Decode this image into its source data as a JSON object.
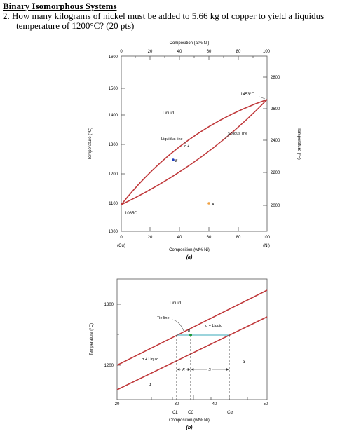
{
  "header": {
    "section_title": "Binary Isomorphous Systems",
    "question_line1": "2.  How many kilograms of nickel must be added to 5.66 kg of copper to yield a liquidus",
    "question_line2": "temperature of 1200°C? (20 pts)"
  },
  "diagram_a": {
    "top_axis_title": "Composition (at% Ni)",
    "top_ticks": [
      "0",
      "20",
      "40",
      "60",
      "80",
      "100"
    ],
    "left_axis_title": "Temperature (°C)",
    "left_ticks": [
      "1600",
      "1500",
      "1400",
      "1300",
      "1200",
      "1100",
      "1000"
    ],
    "right_axis_title": "Temperature (°F)",
    "right_ticks": [
      "2800",
      "2600",
      "2400",
      "2200",
      "2000"
    ],
    "bottom_ticks": [
      "0",
      "20",
      "40",
      "60",
      "80",
      "100"
    ],
    "bottom_end_left": "(Cu)",
    "bottom_end_right": "(Ni)",
    "bottom_axis_title": "Composition (wt% Ni)",
    "panel_label": "(a)",
    "labels": {
      "liquid": "Liquid",
      "melting_ni": "1453°C",
      "liquidus_line": "Liquidus line",
      "solidus_line": "Solidus line",
      "two_phase": "α + L",
      "point_b": "B",
      "point_a": "A",
      "melting_cu": "1085C"
    },
    "colors": {
      "curve": "#c0393b",
      "point_b": "#1f3fbf",
      "point_a": "#f0a040"
    }
  },
  "diagram_b": {
    "left_axis_title": "Temperature (°C)",
    "left_ticks": [
      "1300",
      "1200"
    ],
    "bottom_ticks": [
      "20",
      "30",
      "40",
      "50"
    ],
    "bottom_axis_title": "Composition (wt% Ni)",
    "panel_label": "(b)",
    "labels": {
      "liquid": "Liquid",
      "tie_line": "Tie line",
      "alpha_liquid_right": "α + Liquid",
      "alpha_liquid_left": "α + Liquid",
      "point_b": "B",
      "alpha_right": "α",
      "alpha_left": "α",
      "r": "R",
      "s": "S",
      "cl": "CL",
      "c0": "C0",
      "calpha": "Cα"
    },
    "colors": {
      "curve": "#c0393b",
      "tie": "#3aa8b8",
      "point": "#1a9a3a"
    }
  }
}
